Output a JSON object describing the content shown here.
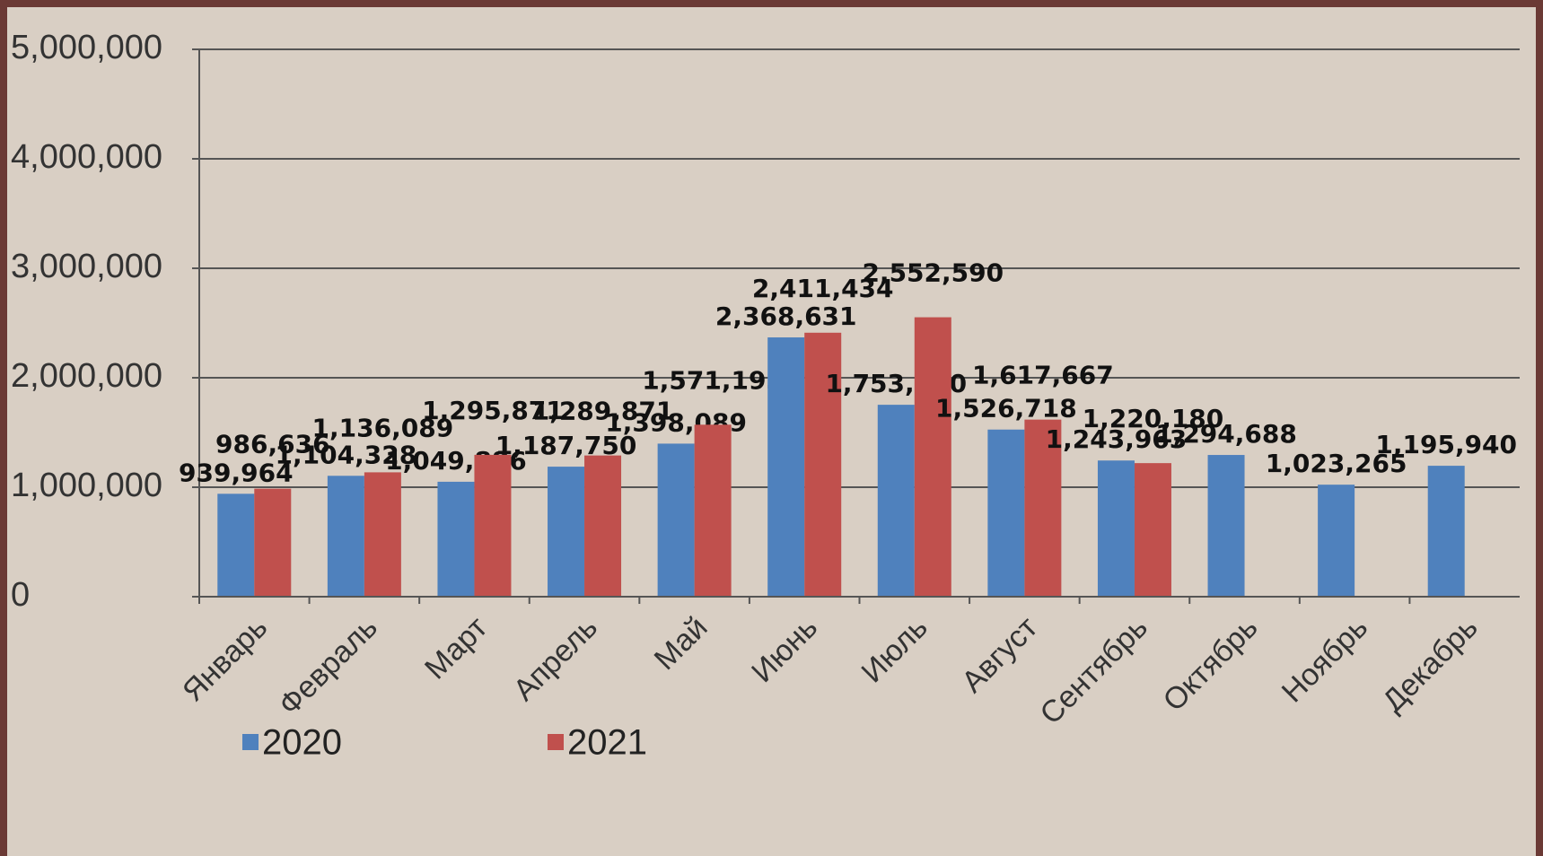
{
  "chart_data": {
    "type": "bar",
    "categories": [
      "Январь",
      "Февраль",
      "Март",
      "Апрель",
      "Май",
      "Июнь",
      "Июль",
      "Август",
      "Сентябрь",
      "Октябрь",
      "Ноябрь",
      "Декабрь"
    ],
    "series": [
      {
        "name": "2020",
        "color": "#4f81bd",
        "values": [
          939964,
          1104328,
          1049886,
          1187750,
          1398089,
          2368631,
          1753180,
          1526718,
          1243963,
          1294688,
          1023265,
          1195940
        ],
        "value_labels": [
          "939,964",
          "1,104,328",
          "1,049,886",
          "1,187,750",
          "1,398,089",
          "2,368,631",
          "1,753,180",
          "1,526,718",
          "1,243,963",
          "1,294,688",
          "1,023,265",
          "1,195,940"
        ]
      },
      {
        "name": "2021",
        "color": "#c0504d",
        "values": [
          986636,
          1136089,
          1295871,
          1289871,
          1571193,
          2411434,
          2552590,
          1617667,
          1220180,
          null,
          null,
          null
        ],
        "value_labels": [
          "986,636",
          "1,136,089",
          "1,295,871",
          "1,289,871",
          "1,571,193",
          "2,411,434",
          "2,552,590",
          "1,617,667",
          "1,220,180",
          null,
          null,
          null
        ]
      }
    ],
    "ylim": [
      0,
      5000000
    ],
    "yticks": [
      0,
      {
        "value": 1000000,
        "label": "1,000,000"
      },
      {
        "value": 2000000,
        "label": "2,000,000"
      },
      {
        "value": 3000000,
        "label": "3,000,000"
      },
      {
        "value": 4000000,
        "label": "4,000,000"
      },
      {
        "value": 5000000,
        "label": "5,000,000"
      }
    ],
    "grid": true,
    "legend": "bottom-left"
  }
}
